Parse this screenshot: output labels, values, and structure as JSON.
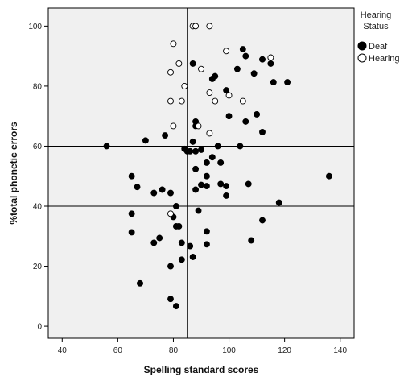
{
  "chart_data": {
    "type": "scatter",
    "title": "",
    "xlabel": "Spelling standard scores",
    "ylabel": "%total phonetic errors",
    "xlim": [
      35,
      145
    ],
    "ylim": [
      -4,
      106
    ],
    "x_ticks": [
      40,
      60,
      80,
      100,
      120,
      140
    ],
    "y_ticks": [
      0,
      20,
      40,
      60,
      80,
      100
    ],
    "reference_lines": {
      "vertical_x": 85,
      "horizontal_y": [
        40,
        60
      ]
    },
    "grid": false,
    "legend": {
      "title": "Hearing Status",
      "title_lines": [
        "Hearing",
        "Status"
      ],
      "position": "right"
    },
    "colors": {
      "plot_background": "#f0f0f0",
      "marker_stroke": "#000000",
      "deaf_fill": "#000000",
      "hearing_fill": "#ffffff"
    },
    "series": [
      {
        "name": "Deaf",
        "marker": "filled-circle",
        "points": [
          [
            56,
            60
          ],
          [
            65,
            50
          ],
          [
            65,
            37.5
          ],
          [
            65,
            31.3
          ],
          [
            67,
            46.4
          ],
          [
            68,
            14.3
          ],
          [
            70,
            61.9
          ],
          [
            73,
            44.4
          ],
          [
            73,
            27.8
          ],
          [
            75,
            29.4
          ],
          [
            76,
            45.5
          ],
          [
            77,
            63.6
          ],
          [
            79,
            44.4
          ],
          [
            79,
            20
          ],
          [
            79,
            9.1
          ],
          [
            80,
            36.4
          ],
          [
            81,
            33.3
          ],
          [
            81,
            40
          ],
          [
            81,
            6.7
          ],
          [
            82,
            33.3
          ],
          [
            83,
            27.8
          ],
          [
            83,
            22.2
          ],
          [
            84,
            59.1
          ],
          [
            85,
            58.3
          ],
          [
            86,
            26.7
          ],
          [
            86,
            58.3
          ],
          [
            87,
            87.5
          ],
          [
            87,
            61.5
          ],
          [
            87,
            23.1
          ],
          [
            88,
            68.2
          ],
          [
            88,
            66.7
          ],
          [
            88,
            58.3
          ],
          [
            88,
            52.4
          ],
          [
            88,
            45.5
          ],
          [
            89,
            38.5
          ],
          [
            90,
            58.8
          ],
          [
            90,
            47.1
          ],
          [
            92,
            54.5
          ],
          [
            92,
            50
          ],
          [
            92,
            46.7
          ],
          [
            92,
            31.6
          ],
          [
            92,
            27.3
          ],
          [
            94,
            82.4
          ],
          [
            94,
            56.3
          ],
          [
            95,
            83.3
          ],
          [
            96,
            60
          ],
          [
            97,
            54.5
          ],
          [
            97,
            47.4
          ],
          [
            99,
            78.6
          ],
          [
            99,
            46.7
          ],
          [
            99,
            43.5
          ],
          [
            100,
            70
          ],
          [
            103,
            85.7
          ],
          [
            104,
            60
          ],
          [
            105,
            92.3
          ],
          [
            106,
            90
          ],
          [
            106,
            68.2
          ],
          [
            107,
            47.4
          ],
          [
            108,
            28.6
          ],
          [
            109,
            84.2
          ],
          [
            110,
            70.6
          ],
          [
            112,
            88.9
          ],
          [
            112,
            64.7
          ],
          [
            112,
            35.3
          ],
          [
            115,
            87.5
          ],
          [
            116,
            81.3
          ],
          [
            118,
            41.2
          ],
          [
            121,
            81.3
          ],
          [
            136,
            50
          ]
        ]
      },
      {
        "name": "Hearing",
        "marker": "open-circle",
        "points": [
          [
            79,
            37.5
          ],
          [
            79,
            75
          ],
          [
            79,
            84.6
          ],
          [
            80,
            66.7
          ],
          [
            80,
            94.1
          ],
          [
            82,
            87.5
          ],
          [
            83,
            75
          ],
          [
            84,
            80
          ],
          [
            87,
            100
          ],
          [
            88,
            100
          ],
          [
            89,
            66.7
          ],
          [
            90,
            85.7
          ],
          [
            93,
            100
          ],
          [
            93,
            77.8
          ],
          [
            93,
            64.3
          ],
          [
            95,
            75
          ],
          [
            99,
            91.7
          ],
          [
            100,
            76.9
          ],
          [
            105,
            75
          ],
          [
            115,
            89.5
          ]
        ]
      }
    ]
  }
}
